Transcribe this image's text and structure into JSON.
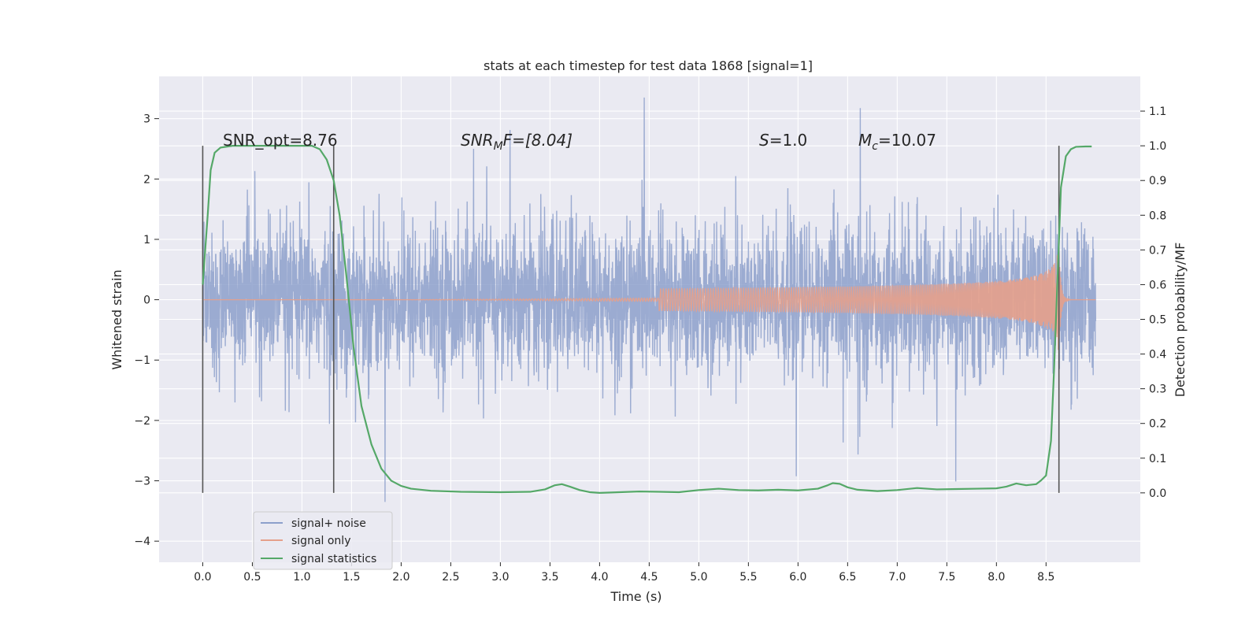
{
  "colors": {
    "plot_bg": "#eaeaf2",
    "grid": "#ffffff",
    "noise": "#8da0cb",
    "signal": "#e5a08b",
    "stats": "#55a868",
    "marker": "#555555",
    "text": "#262626"
  },
  "chart_data": {
    "type": "line",
    "title": "stats at each timestep for test data 1868 [signal=1]",
    "xlabel": "Time (s)",
    "ylabel": "Whitened strain",
    "y2label": "Detection probability/MF",
    "xlim": [
      -0.44,
      9.45
    ],
    "ylim": [
      -4.35,
      3.7
    ],
    "y2lim": [
      -0.2,
      1.2
    ],
    "xticks": [
      0.0,
      0.5,
      1.0,
      1.5,
      2.0,
      2.5,
      3.0,
      3.5,
      4.0,
      4.5,
      5.0,
      5.5,
      6.0,
      6.5,
      7.0,
      7.5,
      8.0,
      8.5
    ],
    "xtick_labels": [
      "0.0",
      "0.5",
      "1.0",
      "1.5",
      "2.0",
      "2.5",
      "3.0",
      "3.5",
      "4.0",
      "4.5",
      "5.0",
      "5.5",
      "6.0",
      "6.5",
      "7.0",
      "7.5",
      "8.0",
      "8.5"
    ],
    "yticks": [
      -4,
      -3,
      -2,
      -1,
      0,
      1,
      2,
      3
    ],
    "ytick_labels": [
      "−4",
      "−3",
      "−2",
      "−1",
      "0",
      "1",
      "2",
      "3"
    ],
    "y2ticks": [
      0.0,
      0.1,
      0.2,
      0.3,
      0.4,
      0.5,
      0.6,
      0.7,
      0.8,
      0.9,
      1.0,
      1.1
    ],
    "y2tick_labels": [
      "0.0",
      "0.1",
      "0.2",
      "0.3",
      "0.4",
      "0.5",
      "0.6",
      "0.7",
      "0.8",
      "0.9",
      "1.0",
      "1.1"
    ],
    "annotations": {
      "snr_opt": "SNR_opt=8.76",
      "snr_mf_main": "SNR",
      "snr_mf_sub": "M",
      "snr_mf_rest": "F=[8.04]",
      "s_main": "S",
      "s_rest": "=1.0",
      "mc_main": "M",
      "mc_sub": "c",
      "mc_rest": "=10.07"
    },
    "vertical_markers": [
      {
        "x": 0.0,
        "y2_range": [
          0.0,
          1.0
        ]
      },
      {
        "x": 1.32,
        "y2_range": [
          0.0,
          1.0
        ]
      },
      {
        "x": 8.63,
        "y2_range": [
          0.0,
          1.0
        ]
      }
    ],
    "series": [
      {
        "name": "signal+ noise",
        "axis": "left",
        "x_start": 0.0,
        "x_end": 9.0,
        "std": 0.62,
        "max_abs": 3.35
      },
      {
        "name": "signal only",
        "axis": "left",
        "chirp_start": 4.6,
        "merger_time": 8.63,
        "peak_amplitude": 0.95
      },
      {
        "name": "signal statistics",
        "axis": "right",
        "x": [
          0.0,
          0.05,
          0.08,
          0.12,
          0.18,
          0.3,
          0.5,
          0.8,
          1.0,
          1.1,
          1.18,
          1.25,
          1.32,
          1.38,
          1.45,
          1.52,
          1.6,
          1.7,
          1.8,
          1.9,
          2.0,
          2.1,
          2.3,
          2.6,
          3.0,
          3.3,
          3.45,
          3.55,
          3.62,
          3.7,
          3.8,
          3.9,
          4.0,
          4.2,
          4.4,
          4.6,
          4.8,
          5.0,
          5.2,
          5.4,
          5.6,
          5.8,
          6.0,
          6.2,
          6.3,
          6.35,
          6.42,
          6.5,
          6.6,
          6.8,
          7.0,
          7.2,
          7.4,
          7.6,
          7.8,
          8.0,
          8.1,
          8.2,
          8.3,
          8.4,
          8.45,
          8.5,
          8.55,
          8.58,
          8.62,
          8.65,
          8.7,
          8.75,
          8.8,
          8.9,
          8.96
        ],
        "values": [
          0.6,
          0.8,
          0.93,
          0.98,
          0.995,
          1.0,
          1.0,
          1.0,
          1.0,
          1.0,
          0.99,
          0.96,
          0.9,
          0.8,
          0.62,
          0.42,
          0.25,
          0.14,
          0.07,
          0.035,
          0.02,
          0.012,
          0.006,
          0.003,
          0.002,
          0.003,
          0.01,
          0.022,
          0.025,
          0.018,
          0.008,
          0.002,
          0.0,
          0.002,
          0.004,
          0.003,
          0.002,
          0.008,
          0.012,
          0.008,
          0.007,
          0.009,
          0.007,
          0.012,
          0.022,
          0.028,
          0.026,
          0.016,
          0.009,
          0.005,
          0.008,
          0.014,
          0.01,
          0.011,
          0.012,
          0.013,
          0.018,
          0.027,
          0.022,
          0.025,
          0.036,
          0.05,
          0.15,
          0.35,
          0.65,
          0.88,
          0.97,
          0.99,
          0.997,
          0.998,
          0.998
        ]
      }
    ],
    "legend": {
      "position": "lower-left",
      "entries": [
        "signal+ noise",
        "signal only",
        "signal statistics"
      ]
    }
  }
}
